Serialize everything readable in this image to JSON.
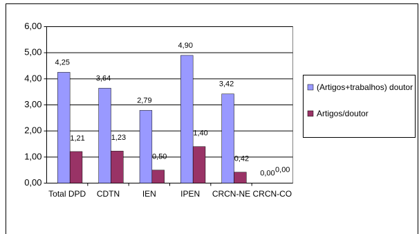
{
  "chart_data": {
    "type": "bar",
    "categories": [
      "Total DPD",
      "CDTN",
      "IEN",
      "IPEN",
      "CRCN-NE",
      "CRCN-CO"
    ],
    "series": [
      {
        "name": "(Artigos+trabalhos) doutor",
        "color": "#9999ff",
        "values": [
          4.25,
          3.64,
          2.79,
          4.9,
          3.42,
          0.0
        ],
        "value_labels": [
          "4,25",
          "3,64",
          "2,79",
          "4,90",
          "3,42",
          "0,00"
        ]
      },
      {
        "name": "Artigos/doutor",
        "color": "#993366",
        "values": [
          1.21,
          1.23,
          0.5,
          1.4,
          0.42,
          0.0
        ],
        "value_labels": [
          "1,21",
          "1,23",
          "0,50",
          "1,40",
          "0,42",
          "0,00"
        ]
      }
    ],
    "ylim": [
      0,
      6
    ],
    "yticks": [
      {
        "value": 0,
        "label": "0,00"
      },
      {
        "value": 1,
        "label": "1,00"
      },
      {
        "value": 2,
        "label": "2,00"
      },
      {
        "value": 3,
        "label": "3,00"
      },
      {
        "value": 4,
        "label": "4,00"
      },
      {
        "value": 5,
        "label": "5,00"
      },
      {
        "value": 6,
        "label": "6,00"
      }
    ],
    "grid": true,
    "legend": "right"
  }
}
